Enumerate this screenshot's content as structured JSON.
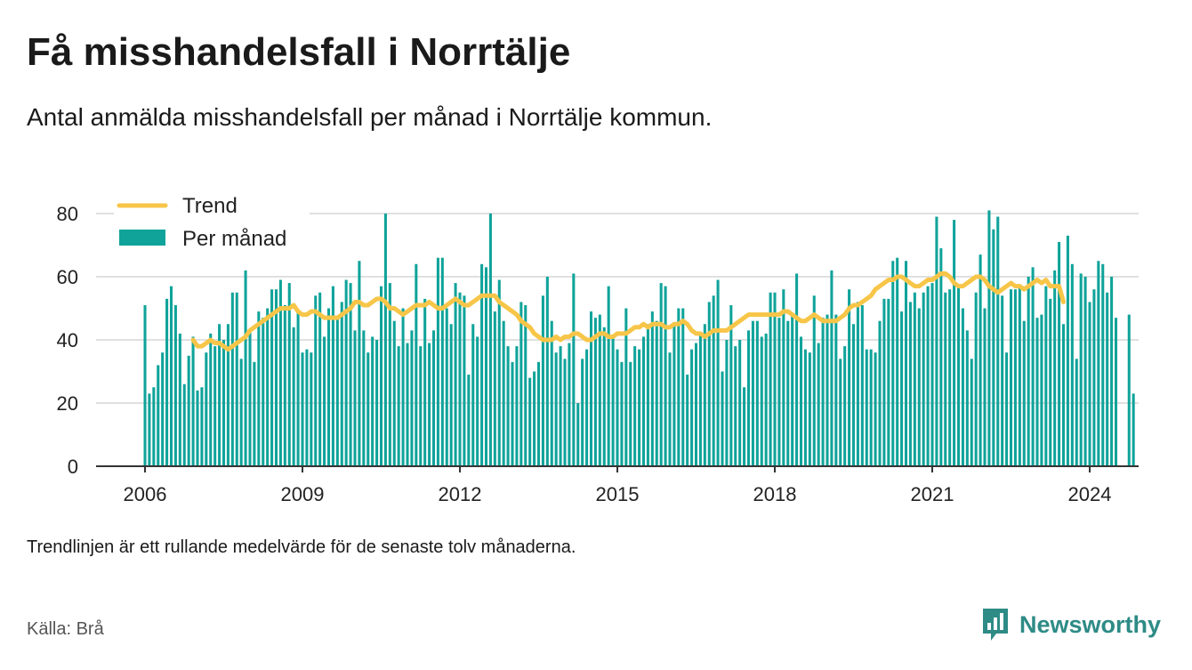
{
  "title": "Få misshandelsfall i Norrtälje",
  "subtitle": "Antal anmälda misshandelsfall per månad i Norrtälje kommun.",
  "note": "Trendlinjen är ett rullande medelvärde för de senaste tolv månaderna.",
  "source": "Källa: Brå",
  "brand": "Newsworthy",
  "colors": {
    "bars": "#0fa39a",
    "trend": "#f7c548",
    "grid": "#d6d6d6",
    "axis": "#333333",
    "brand": "#2e8b86"
  },
  "chart_data": {
    "type": "bar",
    "x_start": "2006-01",
    "x_end": "2024-01",
    "ylim": [
      0,
      80
    ],
    "yticks": [
      0,
      20,
      40,
      60,
      80
    ],
    "xticks": [
      "2006",
      "2009",
      "2012",
      "2015",
      "2018",
      "2021",
      "2024"
    ],
    "legend": {
      "position": "top-left",
      "items": [
        "Trend",
        "Per månad"
      ]
    },
    "series": [
      {
        "name": "Per månad",
        "type": "bar",
        "values": [
          51,
          23,
          25,
          32,
          36,
          53,
          57,
          51,
          42,
          26,
          35,
          41,
          24,
          25,
          36,
          42,
          38,
          45,
          40,
          45,
          55,
          55,
          34,
          62,
          43,
          33,
          49,
          47,
          50,
          56,
          56,
          59,
          51,
          58,
          44,
          49,
          36,
          37,
          36,
          54,
          55,
          41,
          50,
          57,
          47,
          52,
          59,
          58,
          43,
          65,
          43,
          36,
          41,
          40,
          57,
          80,
          58,
          46,
          38,
          50,
          39,
          43,
          64,
          38,
          53,
          39,
          43,
          66,
          66,
          50,
          45,
          58,
          55,
          54,
          29,
          45,
          41,
          64,
          63,
          80,
          49,
          59,
          46,
          38,
          33,
          38,
          52,
          51,
          28,
          30,
          33,
          54,
          60,
          46,
          36,
          38,
          34,
          39,
          61,
          20,
          34,
          37,
          49,
          47,
          48,
          44,
          57,
          41,
          37,
          33,
          50,
          33,
          38,
          37,
          41,
          45,
          49,
          46,
          58,
          57,
          36,
          45,
          50,
          50,
          29,
          37,
          39,
          42,
          45,
          52,
          54,
          59,
          30,
          40,
          51,
          38,
          40,
          25,
          43,
          46,
          46,
          41,
          42,
          55,
          55,
          47,
          56,
          46,
          48,
          61,
          41,
          37,
          36,
          54,
          39,
          47,
          48,
          62,
          48,
          34,
          38,
          56,
          45,
          52,
          51,
          37,
          37,
          36,
          46,
          53,
          53,
          65,
          66,
          49,
          65,
          52,
          55,
          50,
          55,
          57,
          58,
          79,
          69,
          55,
          56,
          78,
          57,
          50,
          43,
          34,
          55,
          67,
          50,
          81,
          75,
          79,
          54,
          36,
          56,
          56,
          57,
          46,
          60,
          63,
          47,
          48,
          57,
          53,
          62,
          71,
          45,
          73,
          64,
          34,
          61,
          60,
          52,
          56,
          65,
          64,
          55,
          60,
          47,
          0,
          0,
          48,
          23
        ]
      },
      {
        "name": "Trend",
        "type": "line",
        "start": "2006-12",
        "values": [
          40,
          38,
          38,
          39,
          40,
          39,
          39,
          38,
          37,
          38,
          39,
          40,
          41,
          43,
          44,
          45,
          46,
          47,
          48,
          49,
          50,
          50,
          50,
          51,
          49,
          48,
          48,
          49,
          49,
          48,
          47,
          47,
          47,
          47,
          48,
          49,
          50,
          52,
          52,
          51,
          51,
          52,
          53,
          53,
          52,
          50,
          50,
          49,
          48,
          49,
          50,
          51,
          51,
          51,
          52,
          51,
          50,
          50,
          51,
          52,
          53,
          52,
          51,
          51,
          52,
          53,
          54,
          54,
          54,
          54,
          52,
          51,
          50,
          49,
          48,
          46,
          45,
          44,
          42,
          41,
          40,
          40,
          40,
          41,
          40,
          41,
          41,
          42,
          42,
          41,
          40,
          40,
          41,
          42,
          42,
          41,
          41,
          42,
          42,
          42,
          43,
          44,
          44,
          45,
          44,
          45,
          45,
          45,
          44,
          44,
          45,
          45,
          46,
          45,
          43,
          42,
          42,
          41,
          42,
          43,
          43,
          43,
          43,
          44,
          45,
          46,
          47,
          48,
          48,
          48,
          48,
          48,
          48,
          48,
          48,
          49,
          49,
          48,
          47,
          46,
          46,
          47,
          48,
          47,
          46,
          46,
          46,
          46,
          47,
          48,
          50,
          51,
          51,
          52,
          53,
          54,
          56,
          57,
          58,
          59,
          59,
          60,
          60,
          59,
          58,
          57,
          57,
          58,
          59,
          59,
          60,
          61,
          61,
          60,
          58,
          57,
          57,
          58,
          59,
          60,
          60,
          59,
          57,
          56,
          55,
          56,
          57,
          58,
          57,
          57,
          56,
          57,
          58,
          59,
          58,
          59,
          57,
          57,
          57,
          52
        ]
      }
    ]
  }
}
